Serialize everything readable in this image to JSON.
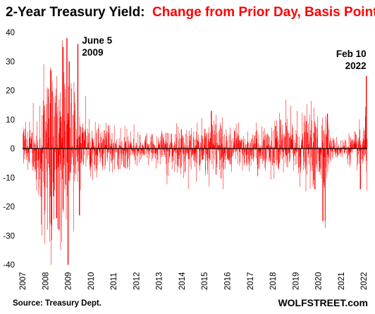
{
  "chart_data": {
    "type": "bar",
    "title": "2-Year Treasury Yield:",
    "subtitle": "Change from Prior Day, Basis Points",
    "xlabel": "",
    "ylabel": "",
    "ylim": [
      -40,
      40
    ],
    "yticks": [
      "40",
      "30",
      "20",
      "10",
      "0",
      "-10",
      "-20",
      "-30",
      "-40"
    ],
    "xticks": [
      "2007",
      "2008",
      "2009",
      "2010",
      "2011",
      "2012",
      "2013",
      "2014",
      "2015",
      "2016",
      "2017",
      "2018",
      "2019",
      "2020",
      "2021",
      "2022"
    ],
    "grid": false,
    "series": [
      {
        "color": "#ff0000",
        "keyframes": [
          [
            2007.0,
            4
          ],
          [
            2007.4,
            5
          ],
          [
            2007.6,
            9
          ],
          [
            2007.9,
            14
          ],
          [
            2008.2,
            20
          ],
          [
            2008.5,
            18
          ],
          [
            2008.75,
            22
          ],
          [
            2009.0,
            16
          ],
          [
            2009.4,
            10
          ],
          [
            2009.8,
            6
          ],
          [
            2010.3,
            4.5
          ],
          [
            2011.5,
            4
          ],
          [
            2012.2,
            2.5
          ],
          [
            2013.0,
            2.5
          ],
          [
            2013.4,
            4
          ],
          [
            2014.0,
            4
          ],
          [
            2015.0,
            5
          ],
          [
            2015.5,
            6
          ],
          [
            2016.0,
            5
          ],
          [
            2016.6,
            4
          ],
          [
            2017.0,
            5
          ],
          [
            2017.6,
            4
          ],
          [
            2018.0,
            5
          ],
          [
            2018.6,
            6
          ],
          [
            2019.0,
            6
          ],
          [
            2019.6,
            6.5
          ],
          [
            2020.1,
            7
          ],
          [
            2020.3,
            10
          ],
          [
            2020.45,
            4
          ],
          [
            2020.6,
            2
          ],
          [
            2021.0,
            2
          ],
          [
            2021.6,
            3
          ],
          [
            2021.9,
            4
          ],
          [
            2022.05,
            7
          ],
          [
            2022.15,
            9
          ]
        ],
        "spikes": [
          [
            2008.25,
            27
          ],
          [
            2008.5,
            -24
          ],
          [
            2008.6,
            -28
          ],
          [
            2008.78,
            35
          ],
          [
            2008.95,
            38
          ],
          [
            2009.0,
            -40
          ],
          [
            2009.05,
            30
          ],
          [
            2009.43,
            36
          ],
          [
            2009.5,
            -23
          ],
          [
            2015.3,
            13
          ],
          [
            2019.85,
            -14
          ],
          [
            2020.2,
            -25
          ],
          [
            2020.4,
            12
          ],
          [
            2021.85,
            -14
          ],
          [
            2022.08,
            11
          ],
          [
            2022.11,
            25
          ]
        ],
        "summary": "Daily changes from 2007 to Feb 2022; largest swings during 2008-2009 (up to about +38 and down to about -40), spike of +36 on June 5 2009, spike of about +25 on Feb 10 2022"
      }
    ],
    "annotations": [
      {
        "text_line1": "June 5",
        "text_line2": "2009",
        "x": 2009.43,
        "y": 36
      },
      {
        "text_line1": "Feb 10",
        "text_line2": "2022",
        "x": 2022.11,
        "y": 25
      }
    ]
  },
  "source": "Source: Treasury Dept.",
  "brand": "WOLFSTREET.com",
  "colors": {
    "bars": "#ff0000",
    "subtitle": "#ff0000",
    "zero_line": "#000000"
  }
}
